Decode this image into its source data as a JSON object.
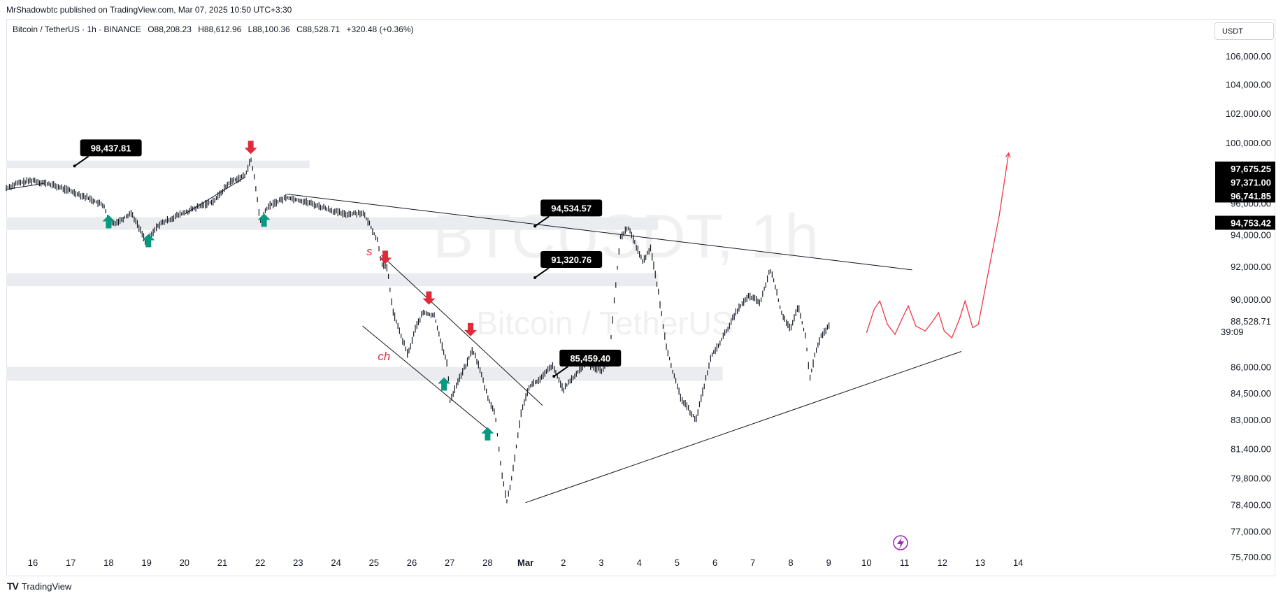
{
  "publisher_line": "MrShadowbtc published on TradingView.com, Mar 07, 2025 10:50 UTC+3:30",
  "legend": {
    "symbol": "Bitcoin / TetherUS · 1h · BINANCE",
    "open": "O88,208.23",
    "high": "H88,612.96",
    "low": "L88,100.36",
    "close": "C88,528.71",
    "change": "+320.48 (+0.36%)"
  },
  "currency_box": "USDT",
  "watermark": {
    "ticker": "BTCUSDT, 1h",
    "name": "Bitcoin / TetherUS"
  },
  "brand": {
    "logo": "TV",
    "name": "TradingView"
  },
  "colors": {
    "up_arrow": "#089981",
    "down_arrow": "#e02b3a",
    "projection": "#f23645",
    "zone": "#ebecef",
    "label_bg": "#000000"
  },
  "chart_data": {
    "type": "candlestick",
    "symbol": "BTCUSDT",
    "interval": "1h",
    "y_axis": {
      "scale": "log",
      "range": [
        75700,
        107500
      ],
      "tick_labels": [
        "106,000.00",
        "104,000.00",
        "102,000.00",
        "100,000.00",
        "96,000.00",
        "94,000.00",
        "92,000.00",
        "90,000.00",
        "86,000.00",
        "84,500.00",
        "83,000.00",
        "81,400.00",
        "79,800.00",
        "78,400.00",
        "77,000.00",
        "75,700.00"
      ],
      "tick_values": [
        106000,
        104000,
        102000,
        100000,
        96000,
        94000,
        92000,
        90000,
        86000,
        84500,
        83000,
        81400,
        79800,
        78400,
        77000,
        75700
      ]
    },
    "x_axis": {
      "labels": [
        "16",
        "17",
        "18",
        "19",
        "20",
        "21",
        "22",
        "23",
        "24",
        "25",
        "26",
        "27",
        "28",
        "Mar",
        "2",
        "3",
        "4",
        "5",
        "6",
        "7",
        "8",
        "9",
        "10",
        "11",
        "12",
        "13",
        "14"
      ],
      "days": [
        16,
        17,
        18,
        19,
        20,
        21,
        22,
        23,
        24,
        25,
        26,
        27,
        28,
        29,
        30,
        31,
        32,
        33,
        34,
        35,
        36,
        37,
        38,
        39,
        40,
        41,
        42
      ]
    },
    "price_path": [
      [
        15.3,
        97000
      ],
      [
        15.6,
        97300
      ],
      [
        16.0,
        97500
      ],
      [
        16.5,
        97200
      ],
      [
        17.0,
        96800
      ],
      [
        17.5,
        96300
      ],
      [
        17.9,
        95800
      ],
      [
        18.0,
        94600
      ],
      [
        18.3,
        94900
      ],
      [
        18.6,
        95400
      ],
      [
        19.0,
        93500
      ],
      [
        19.3,
        94600
      ],
      [
        19.8,
        95200
      ],
      [
        20.3,
        95700
      ],
      [
        20.8,
        96200
      ],
      [
        21.2,
        97400
      ],
      [
        21.6,
        97800
      ],
      [
        21.75,
        98900
      ],
      [
        21.85,
        97600
      ],
      [
        22.0,
        94800
      ],
      [
        22.2,
        95800
      ],
      [
        22.7,
        96400
      ],
      [
        23.2,
        96100
      ],
      [
        23.7,
        95700
      ],
      [
        24.2,
        95300
      ],
      [
        24.7,
        95400
      ],
      [
        24.9,
        94600
      ],
      [
        25.1,
        93600
      ],
      [
        25.2,
        92200
      ],
      [
        25.35,
        91900
      ],
      [
        25.5,
        89300
      ],
      [
        25.7,
        87900
      ],
      [
        25.9,
        86700
      ],
      [
        26.1,
        88300
      ],
      [
        26.3,
        89200
      ],
      [
        26.6,
        89000
      ],
      [
        26.8,
        87200
      ],
      [
        26.95,
        86000
      ],
      [
        27.0,
        84000
      ],
      [
        27.2,
        85100
      ],
      [
        27.45,
        86200
      ],
      [
        27.6,
        87000
      ],
      [
        27.75,
        86200
      ],
      [
        28.0,
        84300
      ],
      [
        28.2,
        83300
      ],
      [
        28.35,
        80400
      ],
      [
        28.45,
        79200
      ],
      [
        28.5,
        78500
      ],
      [
        28.6,
        79300
      ],
      [
        28.75,
        81400
      ],
      [
        28.9,
        83600
      ],
      [
        29.1,
        84900
      ],
      [
        29.4,
        85300
      ],
      [
        29.7,
        86100
      ],
      [
        30.0,
        84700
      ],
      [
        30.3,
        85500
      ],
      [
        30.6,
        86200
      ],
      [
        31.0,
        85800
      ],
      [
        31.2,
        86300
      ],
      [
        31.5,
        93800
      ],
      [
        31.7,
        94500
      ],
      [
        31.9,
        93400
      ],
      [
        32.1,
        92300
      ],
      [
        32.3,
        93200
      ],
      [
        32.5,
        90500
      ],
      [
        32.7,
        87400
      ],
      [
        32.9,
        85600
      ],
      [
        33.1,
        84200
      ],
      [
        33.3,
        83600
      ],
      [
        33.5,
        83000
      ],
      [
        33.7,
        84800
      ],
      [
        33.9,
        86600
      ],
      [
        34.1,
        87300
      ],
      [
        34.3,
        88100
      ],
      [
        34.6,
        89400
      ],
      [
        34.9,
        90200
      ],
      [
        35.2,
        89800
      ],
      [
        35.45,
        91800
      ],
      [
        35.55,
        91200
      ],
      [
        35.75,
        89200
      ],
      [
        36.0,
        88200
      ],
      [
        36.2,
        89600
      ],
      [
        36.4,
        87600
      ],
      [
        36.5,
        85300
      ],
      [
        36.65,
        86800
      ],
      [
        36.8,
        87800
      ],
      [
        36.95,
        88200
      ],
      [
        37.05,
        88529
      ]
    ],
    "annotations": {
      "price_labels": [
        {
          "text": "98,437.81",
          "day": 17.1,
          "price": 98437.81
        },
        {
          "text": "94,534.57",
          "day": 29.25,
          "price": 94534.57
        },
        {
          "text": "91,320.76",
          "day": 29.25,
          "price": 91320.76
        },
        {
          "text": "85,459.40",
          "day": 29.75,
          "price": 85459.4
        }
      ],
      "buy_arrows": [
        {
          "day": 18.0,
          "price": 94800
        },
        {
          "day": 19.05,
          "price": 93600
        },
        {
          "day": 22.1,
          "price": 94900
        },
        {
          "day": 26.85,
          "price": 85000
        },
        {
          "day": 28.0,
          "price": 82200
        }
      ],
      "sell_arrows": [
        {
          "day": 21.75,
          "price": 99700
        },
        {
          "day": 25.3,
          "price": 92600
        },
        {
          "day": 26.45,
          "price": 90100
        },
        {
          "day": 27.55,
          "price": 88200
        }
      ],
      "text_marks": [
        {
          "text": "s",
          "day": 24.8,
          "price": 92700
        },
        {
          "text": "ch",
          "day": 25.1,
          "price": 86400
        }
      ],
      "trendlines": [
        {
          "from": [
            15.3,
            96900
          ],
          "to": [
            16.3,
            97300
          ]
        },
        {
          "from": [
            20.0,
            95300
          ],
          "to": [
            21.6,
            97700
          ]
        },
        {
          "from": [
            22.7,
            96600
          ],
          "to": [
            39.2,
            91800
          ]
        },
        {
          "from": [
            25.2,
            92700
          ],
          "to": [
            29.45,
            83800
          ]
        },
        {
          "from": [
            24.7,
            88400
          ],
          "to": [
            28.1,
            82300
          ]
        },
        {
          "from": [
            29.0,
            78500
          ],
          "to": [
            40.5,
            86900
          ]
        }
      ],
      "zones": [
        {
          "from_day": 15.3,
          "to_day": 23.3,
          "low": 98300,
          "high": 98800
        },
        {
          "from_day": 15.3,
          "to_day": 32.5,
          "low": 94300,
          "high": 95100
        },
        {
          "from_day": 15.3,
          "to_day": 32.5,
          "low": 90800,
          "high": 91600
        },
        {
          "from_day": 15.3,
          "to_day": 34.2,
          "low": 85200,
          "high": 86000
        }
      ],
      "projection": [
        [
          38.0,
          88000
        ],
        [
          38.2,
          89400
        ],
        [
          38.35,
          89900
        ],
        [
          38.55,
          88500
        ],
        [
          38.75,
          87900
        ],
        [
          38.95,
          88900
        ],
        [
          39.1,
          89600
        ],
        [
          39.3,
          88400
        ],
        [
          39.55,
          88100
        ],
        [
          39.75,
          88700
        ],
        [
          39.9,
          89200
        ],
        [
          40.05,
          88100
        ],
        [
          40.25,
          87700
        ],
        [
          40.45,
          88800
        ],
        [
          40.6,
          89900
        ],
        [
          40.8,
          88300
        ],
        [
          40.95,
          88500
        ],
        [
          41.2,
          91500
        ],
        [
          41.5,
          95200
        ],
        [
          41.75,
          99300
        ]
      ]
    },
    "price_tags": [
      {
        "text": "97,675.25",
        "value": 97675.25,
        "kind": "stack"
      },
      {
        "text": "97,371.00",
        "value": 97371.0,
        "kind": "stack"
      },
      {
        "text": "96,741.85",
        "value": 96741.85,
        "kind": "stack"
      },
      {
        "text": "94,753.42",
        "value": 94753.42,
        "kind": "single"
      }
    ],
    "last_price": {
      "text": "88,528.71",
      "countdown": "39:09",
      "value": 88528.71
    },
    "icon": "lightning-event-icon"
  }
}
